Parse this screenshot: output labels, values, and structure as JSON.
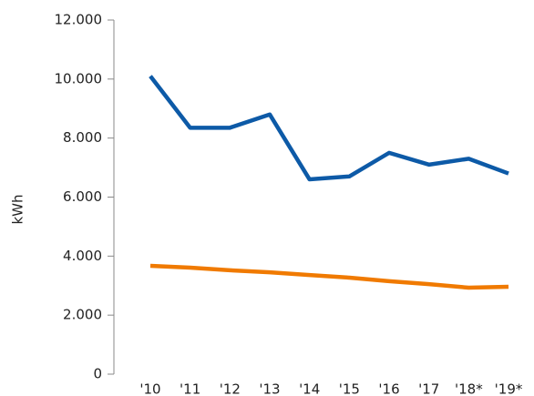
{
  "chart_data": {
    "type": "line",
    "y_label": "kWh",
    "categories": [
      "'10",
      "'11",
      "'12",
      "'13",
      "'14",
      "'15",
      "'16",
      "'17",
      "'18*",
      "'19*"
    ],
    "series": [
      {
        "color": "#0d5aa7",
        "values": [
          10100,
          8350,
          8350,
          8800,
          6600,
          6700,
          7500,
          7100,
          7300,
          6800
        ]
      },
      {
        "color": "#f07a00",
        "values": [
          3670,
          3610,
          3520,
          3450,
          3360,
          3270,
          3150,
          3050,
          2930,
          2960
        ]
      }
    ],
    "ylim": [
      0,
      12000
    ],
    "yticks": [
      0,
      {
        "value": 2000,
        "label": "2.000"
      },
      {
        "value": 4000,
        "label": "4.000"
      },
      {
        "value": 6000,
        "label": "6.000"
      },
      {
        "value": 8000,
        "label": "8.000"
      },
      {
        "value": 10000,
        "label": "10.000"
      },
      {
        "value": 12000,
        "label": "12.000"
      }
    ]
  }
}
